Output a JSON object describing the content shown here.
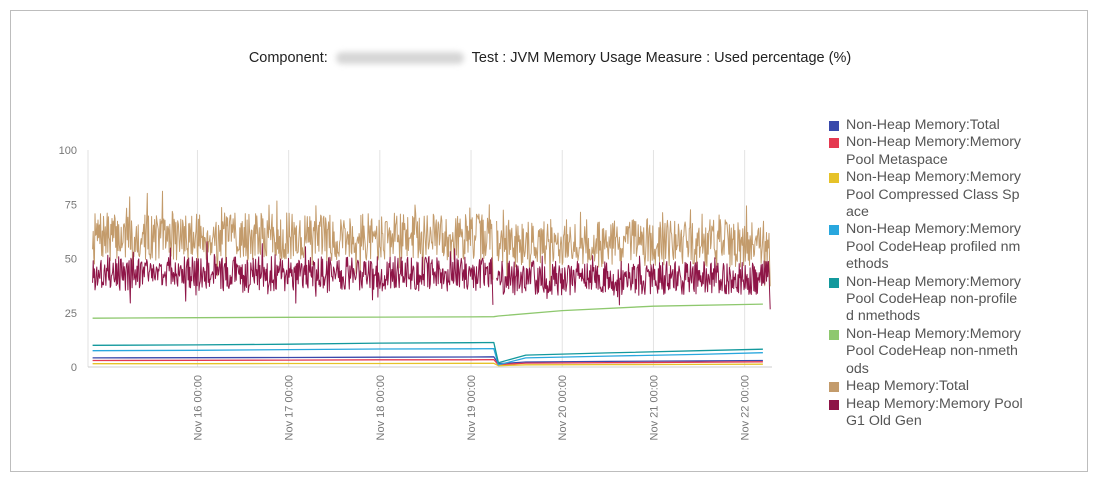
{
  "chart_data": {
    "type": "line",
    "title_prefix": "Component:",
    "title_suffix": "Test : JVM Memory Usage Measure : Used percentage (%)",
    "ylim": [
      0,
      100
    ],
    "y_ticks": [
      0,
      25,
      50,
      75,
      100
    ],
    "x_ticks": [
      "Nov 16 00:00",
      "Nov 17 00:00",
      "Nov 18 00:00",
      "Nov 19 00:00",
      "Nov 20 00:00",
      "Nov 21 00:00",
      "Nov 22 00:00"
    ],
    "x_tick_days": [
      16,
      17,
      18,
      19,
      20,
      21,
      22
    ],
    "x_range_days": [
      14.8,
      22.3
    ],
    "grid": true,
    "legend_position": "right",
    "series": [
      {
        "name": "Non-Heap Memory:Total",
        "color": "#3949ab",
        "kind": "smooth",
        "points": [
          [
            14.85,
            4.2
          ],
          [
            16.0,
            4.3
          ],
          [
            17.0,
            4.4
          ],
          [
            18.0,
            4.5
          ],
          [
            19.0,
            4.6
          ],
          [
            19.25,
            4.7
          ],
          [
            19.3,
            1.5
          ],
          [
            19.6,
            2.3
          ],
          [
            20.5,
            2.6
          ],
          [
            21.5,
            2.8
          ],
          [
            22.2,
            3.0
          ]
        ]
      },
      {
        "name": "Non-Heap Memory:Memory Pool Metaspace",
        "color": "#e53950",
        "kind": "smooth",
        "points": [
          [
            14.85,
            3.0
          ],
          [
            16.0,
            3.1
          ],
          [
            17.0,
            3.2
          ],
          [
            18.0,
            3.3
          ],
          [
            19.0,
            3.3
          ],
          [
            19.25,
            3.4
          ],
          [
            19.3,
            1.0
          ],
          [
            19.6,
            1.8
          ],
          [
            20.5,
            2.0
          ],
          [
            21.5,
            2.2
          ],
          [
            22.2,
            2.4
          ]
        ]
      },
      {
        "name": "Non-Heap Memory:Memory Pool Compressed Class Space",
        "color": "#e6c229",
        "kind": "smooth",
        "points": [
          [
            14.85,
            1.5
          ],
          [
            16.0,
            1.5
          ],
          [
            17.0,
            1.6
          ],
          [
            18.0,
            1.6
          ],
          [
            19.0,
            1.7
          ],
          [
            19.25,
            1.7
          ],
          [
            19.3,
            0.6
          ],
          [
            19.6,
            1.0
          ],
          [
            20.5,
            1.1
          ],
          [
            21.5,
            1.2
          ],
          [
            22.2,
            1.3
          ]
        ]
      },
      {
        "name": "Non-Heap Memory:Memory Pool CodeHeap profiled nmethods",
        "color": "#29a7de",
        "kind": "smooth",
        "points": [
          [
            14.85,
            7.5
          ],
          [
            16.0,
            7.7
          ],
          [
            17.0,
            8.0
          ],
          [
            18.0,
            8.3
          ],
          [
            19.0,
            8.4
          ],
          [
            19.25,
            8.5
          ],
          [
            19.3,
            1.0
          ],
          [
            19.6,
            4.2
          ],
          [
            20.5,
            5.0
          ],
          [
            21.5,
            5.8
          ],
          [
            22.2,
            6.6
          ]
        ]
      },
      {
        "name": "Non-Heap Memory:Memory Pool CodeHeap non-profiled nmethods",
        "color": "#13999d",
        "kind": "smooth",
        "points": [
          [
            14.85,
            10.0
          ],
          [
            16.0,
            10.2
          ],
          [
            17.0,
            10.5
          ],
          [
            18.0,
            11.0
          ],
          [
            19.0,
            11.2
          ],
          [
            19.25,
            11.3
          ],
          [
            19.3,
            2.0
          ],
          [
            19.6,
            5.5
          ],
          [
            20.5,
            6.5
          ],
          [
            21.5,
            7.5
          ],
          [
            22.2,
            8.2
          ]
        ]
      },
      {
        "name": "Non-Heap Memory:Memory Pool CodeHeap non-nmethods",
        "color": "#8ec86e",
        "kind": "smooth",
        "points": [
          [
            14.85,
            22.5
          ],
          [
            16.0,
            22.7
          ],
          [
            17.0,
            22.9
          ],
          [
            18.0,
            23.0
          ],
          [
            19.0,
            23.1
          ],
          [
            19.25,
            23.2
          ],
          [
            19.3,
            23.5
          ],
          [
            20.0,
            26.0
          ],
          [
            21.0,
            28.0
          ],
          [
            22.2,
            29.0
          ]
        ]
      },
      {
        "name": "Heap Memory:Total",
        "color": "#c39b6b",
        "kind": "noisy",
        "seed": 7,
        "segments": [
          {
            "x0": 14.85,
            "x1": 19.24,
            "center": 60,
            "spread": 11
          },
          {
            "x0": 19.28,
            "x1": 22.28,
            "center": 57,
            "spread": 11
          }
        ]
      },
      {
        "name": "Heap Memory:Memory Pool G1 Old Gen",
        "color": "#8e1547",
        "kind": "noisy",
        "seed": 3,
        "segments": [
          {
            "x0": 14.85,
            "x1": 19.24,
            "center": 43,
            "spread": 8
          },
          {
            "x0": 19.28,
            "x1": 22.28,
            "center": 41,
            "spread": 8
          }
        ]
      }
    ]
  }
}
